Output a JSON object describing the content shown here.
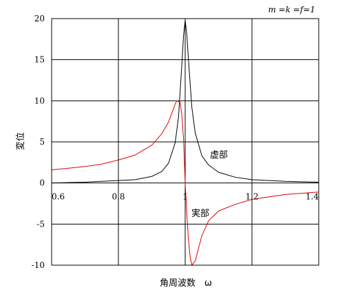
{
  "chart_data": {
    "type": "line",
    "title": "",
    "annotation": "m =k =f=1",
    "xlabel": "角周波数　ω",
    "ylabel": "変位",
    "xlim": [
      0.6,
      1.4
    ],
    "ylim": [
      -10,
      20
    ],
    "x_ticks": [
      "0.6",
      "0.8",
      "1",
      "1.2",
      "1.4"
    ],
    "y_ticks": [
      "20",
      "15",
      "10",
      "5",
      "0",
      "-5",
      "-10"
    ],
    "grid": true,
    "series": [
      {
        "name": "虚部",
        "color": "#000000",
        "x": [
          0.6,
          0.7,
          0.8,
          0.85,
          0.9,
          0.93,
          0.95,
          0.97,
          0.98,
          0.99,
          0.995,
          1.0,
          1.005,
          1.01,
          1.02,
          1.03,
          1.05,
          1.07,
          1.1,
          1.15,
          1.2,
          1.3,
          1.4
        ],
        "y": [
          0.0,
          0.1,
          0.3,
          0.4,
          0.8,
          1.4,
          2.4,
          4.9,
          8.0,
          14.4,
          17.9,
          19.8,
          18.0,
          14.9,
          9.2,
          6.1,
          3.3,
          2.2,
          1.3,
          0.7,
          0.4,
          0.2,
          0.1
        ]
      },
      {
        "name": "実部",
        "color": "#e00000",
        "x": [
          0.6,
          0.65,
          0.7,
          0.75,
          0.8,
          0.85,
          0.9,
          0.93,
          0.95,
          0.97,
          0.975,
          0.985,
          0.99,
          0.995,
          1.0,
          1.005,
          1.01,
          1.015,
          1.02,
          1.03,
          1.05,
          1.07,
          1.1,
          1.15,
          1.2,
          1.3,
          1.4
        ],
        "y": [
          1.6,
          1.8,
          2.0,
          2.3,
          2.8,
          3.4,
          4.6,
          6.0,
          7.4,
          9.6,
          10.0,
          9.8,
          8.2,
          5.4,
          0.0,
          -3.8,
          -7.0,
          -9.0,
          -10.0,
          -9.5,
          -6.4,
          -4.6,
          -3.4,
          -2.6,
          -2.0,
          -1.4,
          -1.1
        ]
      }
    ]
  }
}
